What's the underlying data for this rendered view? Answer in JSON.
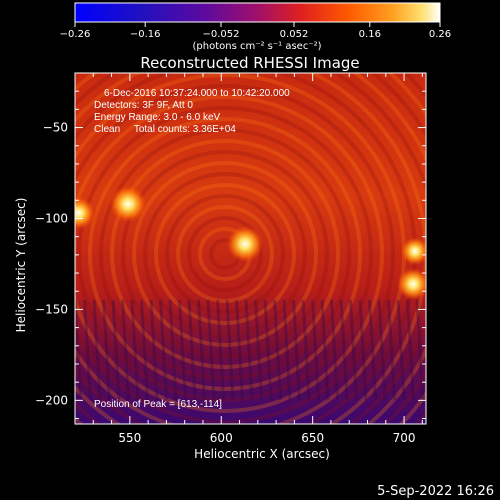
{
  "chart_data": {
    "type": "heatmap",
    "title": "Reconstructed RHESSI Image",
    "xlabel": "Heliocentric X (arcsec)",
    "ylabel": "Heliocentric Y (arcsec)",
    "xlim": [
      520,
      712
    ],
    "ylim": [
      -213,
      -20
    ],
    "x_ticks": [
      550,
      600,
      650,
      700
    ],
    "x_tick_labels": [
      "550",
      "600",
      "650",
      "700"
    ],
    "y_ticks": [
      -50,
      -100,
      -150,
      -200
    ],
    "y_tick_labels": [
      "−50",
      "−100",
      "−150",
      "−200"
    ],
    "colorbar": {
      "range": [
        -0.26,
        0.26
      ],
      "ticks": [
        -0.26,
        -0.16,
        -0.052,
        0.052,
        0.16,
        0.26
      ],
      "tick_labels": [
        "−0.26",
        "−0.16",
        "−0.052",
        "0.052",
        "0.16",
        "0.26"
      ],
      "units_label": "(photons cm⁻² s⁻¹ asec⁻²)"
    },
    "annotations": [
      "6-Dec-2016 10:37:24.000 to 10:42:20.000",
      "Detectors: 3F 9F, Att 0",
      "Energy Range: 3.0 - 6.0 keV",
      "Clean     Total counts: 3.36E+04"
    ],
    "peak": {
      "x": 613,
      "y": -114,
      "label": "Position of Peak = [613,-114]"
    },
    "bright_sources": [
      {
        "x": 613,
        "y": -114,
        "value": 0.26
      },
      {
        "x": 549,
        "y": -92,
        "value": 0.22
      },
      {
        "x": 522,
        "y": -97,
        "value": 0.22
      },
      {
        "x": 705,
        "y": -136,
        "value": 0.21
      },
      {
        "x": 706,
        "y": -118,
        "value": 0.2
      }
    ]
  },
  "footer": {
    "date_stamp": "5-Sep-2022 16:26"
  }
}
